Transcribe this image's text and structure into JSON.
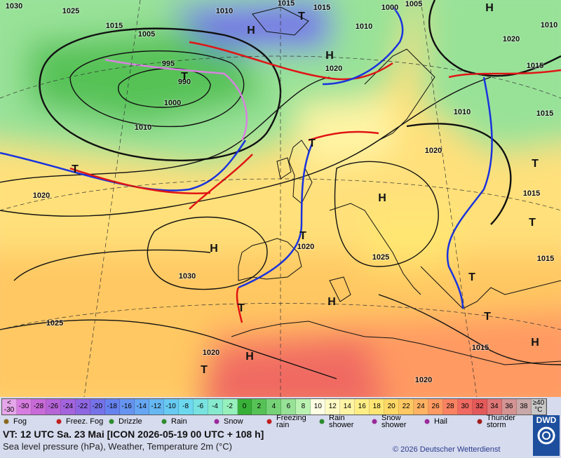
{
  "map": {
    "isobar_labels": [
      "1030",
      "1025",
      "1015",
      "1010",
      "1015",
      "1015",
      "1000",
      "1005",
      "1010",
      "1010",
      "1020",
      "1015",
      "1015",
      "1005",
      "995",
      "990",
      "1000",
      "1010",
      "1020",
      "1010",
      "1020",
      "1015",
      "1020",
      "1025",
      "1030",
      "1020",
      "1025",
      "1015",
      "1020",
      "1020",
      "1015"
    ],
    "system_labels": [
      "H",
      "H",
      "H",
      "T",
      "T",
      "T",
      "T",
      "T",
      "H",
      "H",
      "T",
      "T",
      "H",
      "T",
      "H",
      "T",
      "H",
      "T",
      "T"
    ]
  },
  "temperature_scale": [
    {
      "label": "<\n-30",
      "color": "#e6a6ea"
    },
    {
      "label": "-30",
      "color": "#d77ce0"
    },
    {
      "label": "-28",
      "color": "#c86ad8"
    },
    {
      "label": "-26",
      "color": "#b664d8"
    },
    {
      "label": "-24",
      "color": "#a364de"
    },
    {
      "label": "-22",
      "color": "#8e66e2"
    },
    {
      "label": "-20",
      "color": "#7672e8"
    },
    {
      "label": "-18",
      "color": "#6682ee"
    },
    {
      "label": "-16",
      "color": "#6694f0"
    },
    {
      "label": "-14",
      "color": "#66a6f2"
    },
    {
      "label": "-12",
      "color": "#66b8f2"
    },
    {
      "label": "-10",
      "color": "#66caf2"
    },
    {
      "label": "-8",
      "color": "#6cd8ee"
    },
    {
      "label": "-6",
      "color": "#78e2e0"
    },
    {
      "label": "-4",
      "color": "#86eace"
    },
    {
      "label": "-2",
      "color": "#96f0bc"
    },
    {
      "label": "0",
      "color": "#38b038"
    },
    {
      "label": "2",
      "color": "#56c256"
    },
    {
      "label": "4",
      "color": "#76d276"
    },
    {
      "label": "6",
      "color": "#98e298"
    },
    {
      "label": "8",
      "color": "#baf2b2"
    },
    {
      "label": "10",
      "color": "#ffffe4"
    },
    {
      "label": "12",
      "color": "#fffac4"
    },
    {
      "label": "14",
      "color": "#fff4a4"
    },
    {
      "label": "16",
      "color": "#ffee86"
    },
    {
      "label": "18",
      "color": "#ffe672"
    },
    {
      "label": "20",
      "color": "#ffd866"
    },
    {
      "label": "22",
      "color": "#ffc862"
    },
    {
      "label": "24",
      "color": "#ffb262"
    },
    {
      "label": "26",
      "color": "#ff9a62"
    },
    {
      "label": "28",
      "color": "#fa8262"
    },
    {
      "label": "30",
      "color": "#f06a62"
    },
    {
      "label": "32",
      "color": "#e45a5a"
    },
    {
      "label": "34",
      "color": "#de7676"
    },
    {
      "label": "36",
      "color": "#d49494"
    },
    {
      "label": "38",
      "color": "#c8a8a8"
    },
    {
      "label": "≥40\n°C",
      "color": "#c8c8c8"
    }
  ],
  "weather_legend": [
    "Fog",
    "Freez. Fog",
    "Drizzle",
    "Rain",
    "Snow",
    "Freezing rain",
    "Rain shower",
    "Snow shower",
    "Hail",
    "Thunder storm"
  ],
  "footer": {
    "valid_time": "VT: 12 UTC Sa.  23 Mai [ICON 2026-05-19  00 UTC + 108 h]",
    "description": "Sea level pressure (hPa), Weather, Temperature 2m (°C)",
    "copyright": "© 2026 Deutscher Wetterdienst",
    "logo": "DWD"
  }
}
